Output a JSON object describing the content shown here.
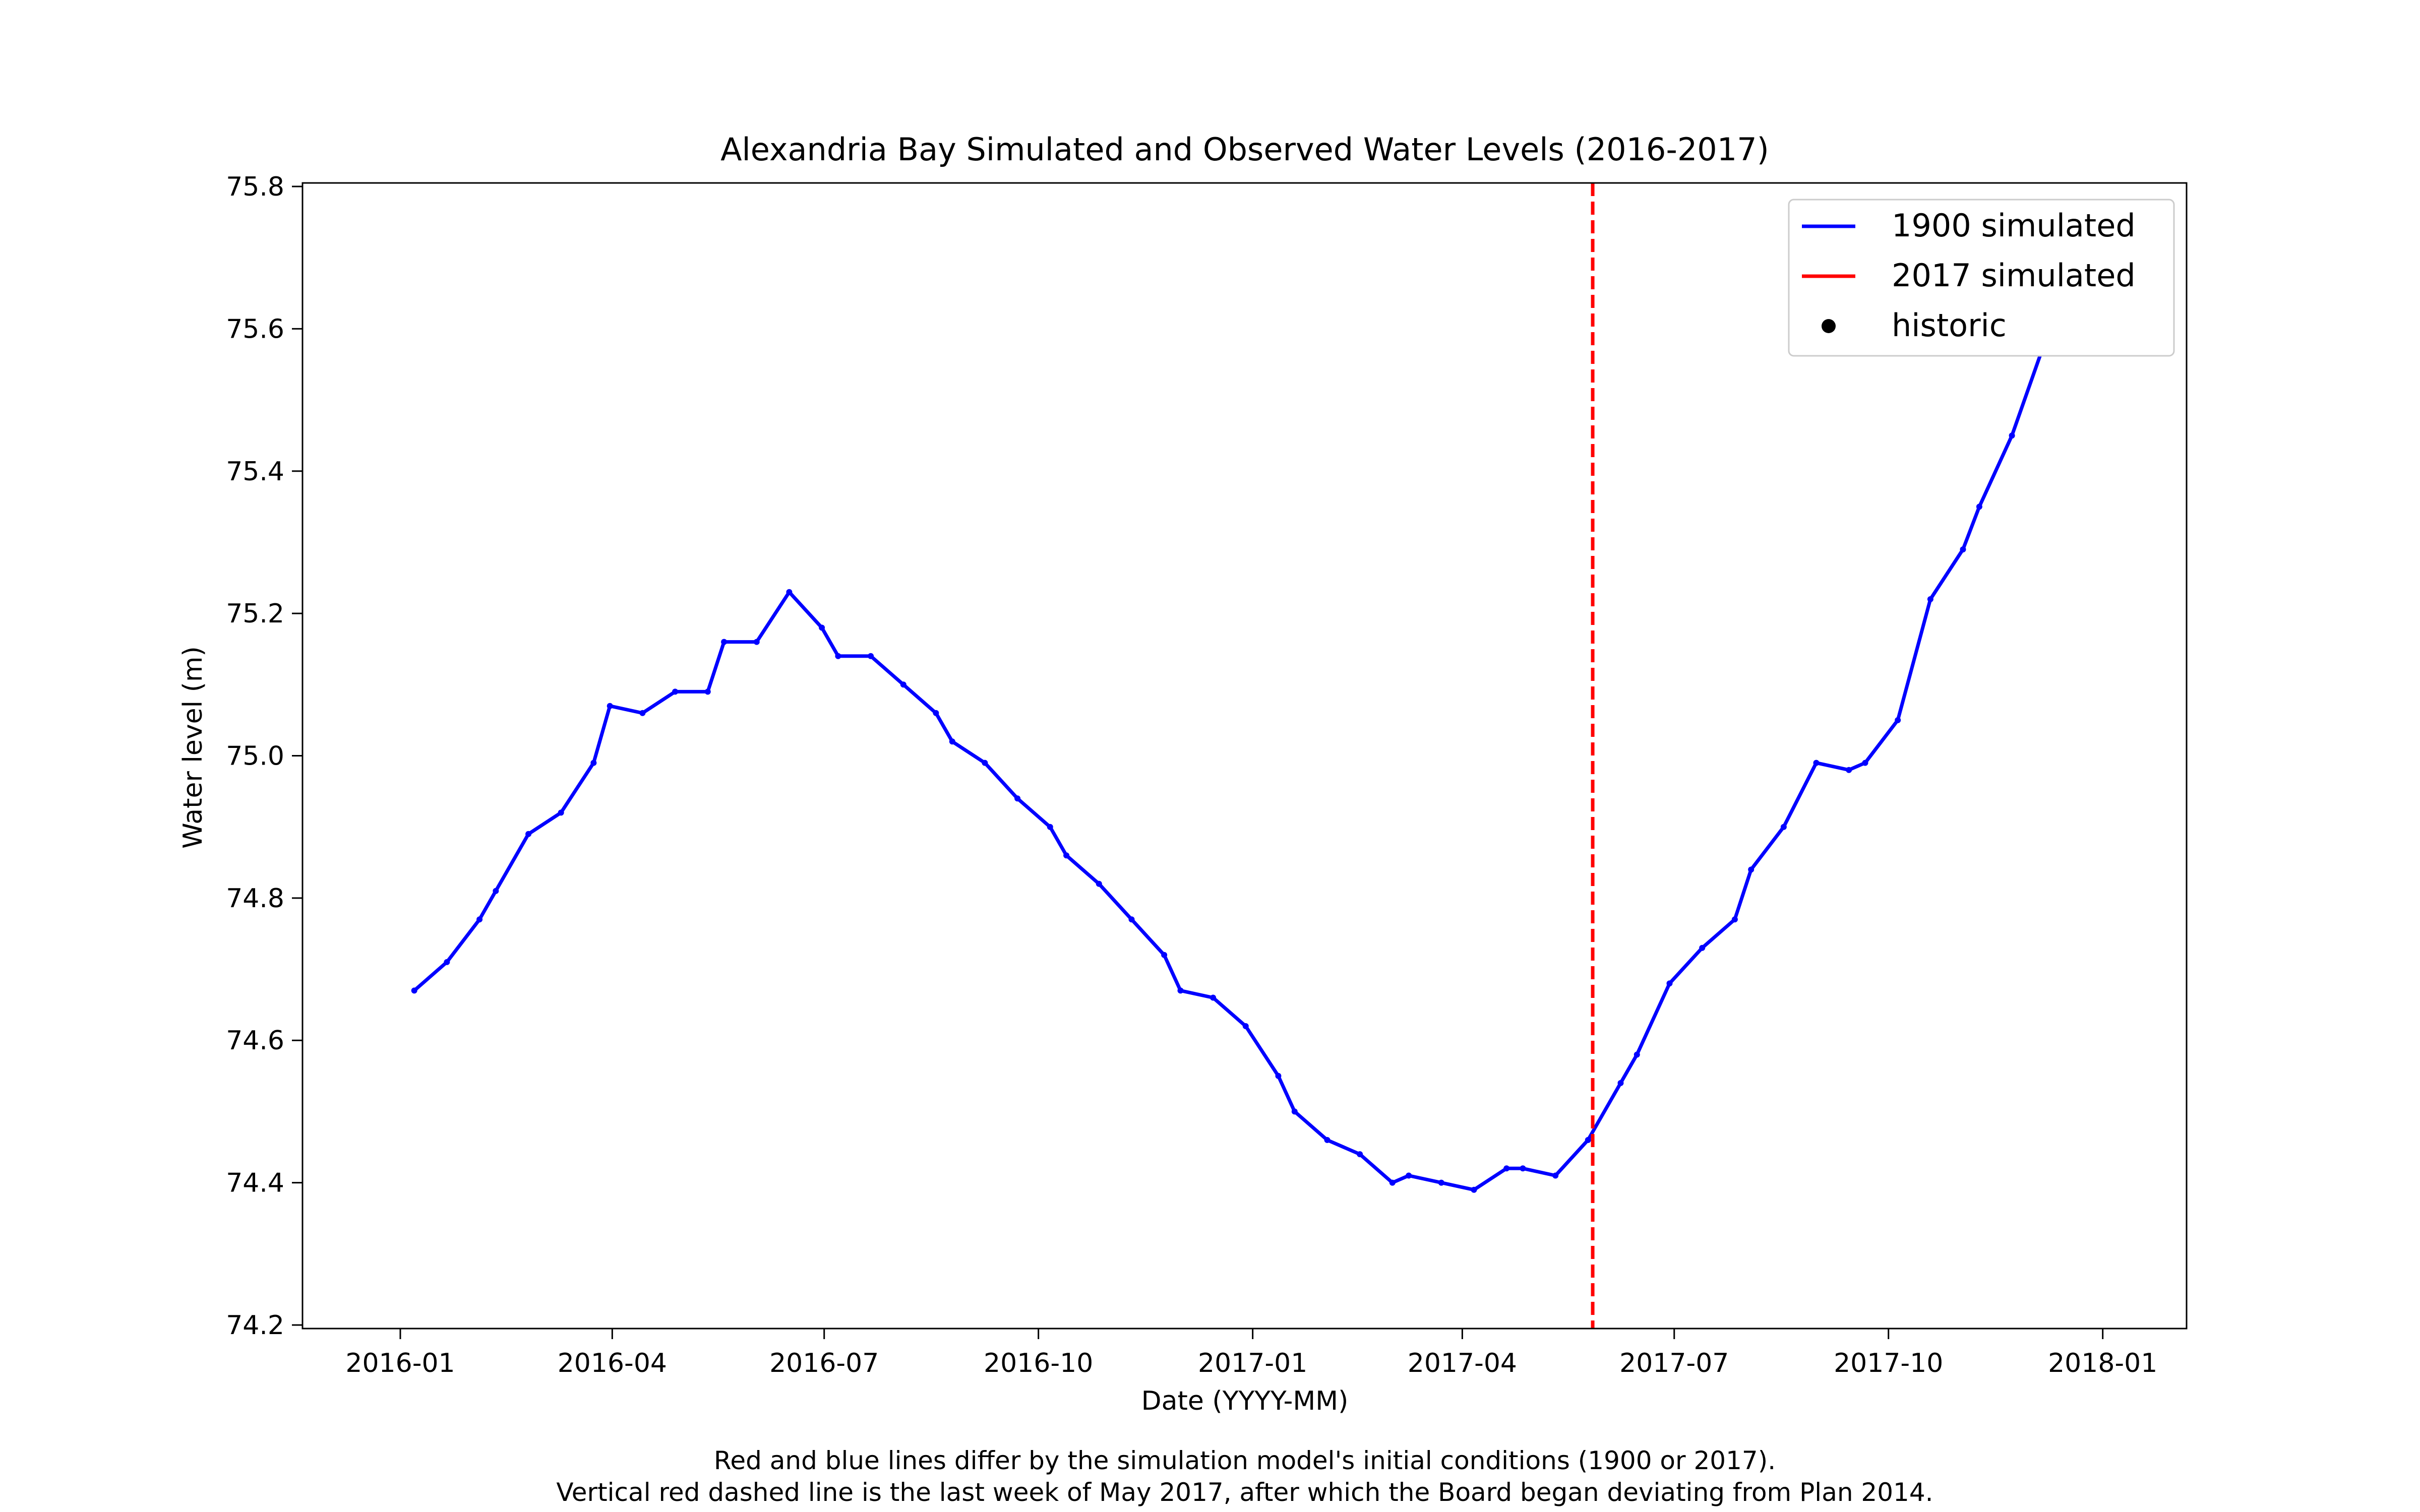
{
  "chart_data": {
    "type": "line",
    "title": "Alexandria Bay Simulated and Observed Water Levels (2016-2017)",
    "xlabel": "Date (YYYY-MM)",
    "ylabel": "Water level (m)",
    "xlim": [
      "2015-11-20",
      "2018-02-06"
    ],
    "ylim": [
      74.195,
      75.805
    ],
    "x_ticks": [
      "2016-01",
      "2016-04",
      "2016-07",
      "2016-10",
      "2017-01",
      "2017-04",
      "2017-07",
      "2017-10",
      "2018-01"
    ],
    "y_ticks": [
      "74.2",
      "74.4",
      "74.6",
      "74.8",
      "75.0",
      "75.2",
      "75.4",
      "75.6",
      "75.8"
    ],
    "grid": false,
    "legend_position": "top-right",
    "caption": [
      "Red and blue lines differ by the simulation model's initial conditions (1900 or 2017).",
      "Vertical red dashed line is the last week of May 2017, after which the Board began deviating from Plan 2014."
    ],
    "vline": {
      "x": "2017-05-27",
      "color": "#ff0000",
      "style": "dashed"
    },
    "series": [
      {
        "name": "1900 simulated",
        "kind": "line",
        "color": "#0000ff",
        "points": [
          [
            "2016-01-07",
            74.67
          ],
          [
            "2016-01-21",
            74.71
          ],
          [
            "2016-02-04",
            74.77
          ],
          [
            "2016-02-11",
            74.81
          ],
          [
            "2016-02-25",
            74.89
          ],
          [
            "2016-03-10",
            74.92
          ],
          [
            "2016-03-24",
            74.99
          ],
          [
            "2016-03-31",
            75.07
          ],
          [
            "2016-04-14",
            75.06
          ],
          [
            "2016-04-28",
            75.09
          ],
          [
            "2016-05-12",
            75.09
          ],
          [
            "2016-05-19",
            75.16
          ],
          [
            "2016-06-02",
            75.16
          ],
          [
            "2016-06-16",
            75.23
          ],
          [
            "2016-06-30",
            75.18
          ],
          [
            "2016-07-07",
            75.14
          ],
          [
            "2016-07-21",
            75.14
          ],
          [
            "2016-08-04",
            75.1
          ],
          [
            "2016-08-18",
            75.06
          ],
          [
            "2016-08-25",
            75.02
          ],
          [
            "2016-09-08",
            74.99
          ],
          [
            "2016-09-22",
            74.94
          ],
          [
            "2016-10-06",
            74.9
          ],
          [
            "2016-10-13",
            74.86
          ],
          [
            "2016-10-27",
            74.82
          ],
          [
            "2016-11-10",
            74.77
          ],
          [
            "2016-11-24",
            74.72
          ],
          [
            "2016-12-01",
            74.67
          ],
          [
            "2016-12-15",
            74.66
          ],
          [
            "2016-12-29",
            74.62
          ],
          [
            "2017-01-12",
            74.55
          ],
          [
            "2017-01-19",
            74.5
          ],
          [
            "2017-02-02",
            74.46
          ],
          [
            "2017-02-16",
            74.44
          ],
          [
            "2017-03-02",
            74.4
          ],
          [
            "2017-03-09",
            74.41
          ],
          [
            "2017-03-23",
            74.4
          ],
          [
            "2017-04-06",
            74.39
          ],
          [
            "2017-04-20",
            74.42
          ],
          [
            "2017-04-27",
            74.42
          ],
          [
            "2017-05-11",
            74.41
          ],
          [
            "2017-05-25",
            74.46
          ],
          [
            "2017-06-08",
            74.54
          ],
          [
            "2017-06-15",
            74.58
          ],
          [
            "2017-06-29",
            74.68
          ],
          [
            "2017-07-13",
            74.73
          ],
          [
            "2017-07-27",
            74.77
          ],
          [
            "2017-08-03",
            74.84
          ],
          [
            "2017-08-17",
            74.9
          ],
          [
            "2017-08-31",
            74.99
          ],
          [
            "2017-09-14",
            74.98
          ],
          [
            "2017-09-21",
            74.99
          ],
          [
            "2017-10-05",
            75.05
          ],
          [
            "2017-10-19",
            75.22
          ],
          [
            "2017-11-02",
            75.29
          ],
          [
            "2017-11-09",
            75.35
          ],
          [
            "2017-11-23",
            75.45
          ],
          [
            "2017-12-07",
            75.58
          ],
          [
            "2017-12-21",
            75.67
          ],
          [
            "2017-12-28",
            75.73
          ]
        ]
      },
      {
        "name": "2017 simulated",
        "kind": "line",
        "color": "#ff0000",
        "points": []
      },
      {
        "name": "historic",
        "kind": "scatter",
        "color": "#000000",
        "points": []
      }
    ]
  }
}
